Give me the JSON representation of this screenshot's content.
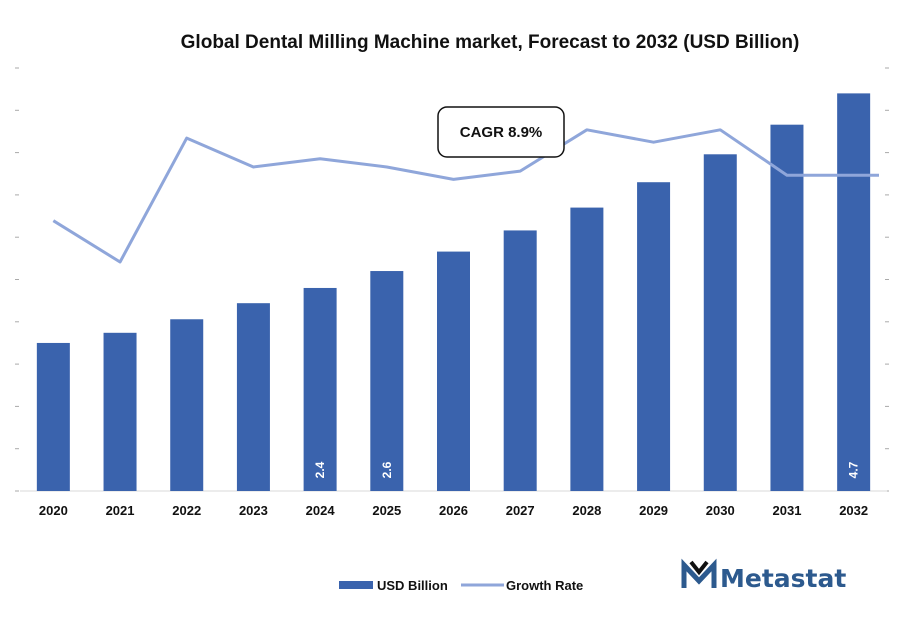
{
  "chart_data": {
    "type": "bar",
    "title": "Global Dental Milling Machine market, Forecast to 2032 (USD Billion)",
    "xlabel": "",
    "ylabel": "",
    "categories": [
      "2020",
      "2021",
      "2022",
      "2023",
      "2024",
      "2025",
      "2026",
      "2027",
      "2028",
      "2029",
      "2030",
      "2031",
      "2032"
    ],
    "ylim": [
      0,
      5.0
    ],
    "series": [
      {
        "name": "USD Billion",
        "kind": "bar",
        "color": "#3a63ad",
        "values": [
          1.75,
          1.87,
          2.03,
          2.22,
          2.4,
          2.6,
          2.83,
          3.08,
          3.35,
          3.65,
          3.98,
          4.33,
          4.7
        ],
        "labels": [
          "",
          "",
          "",
          "",
          "2.4",
          "2.6",
          "",
          "",
          "",
          "",
          "",
          "",
          "4.7"
        ]
      },
      {
        "name": "Growth Rate",
        "kind": "line",
        "color": "#8fa6da",
        "values": [
          8.2,
          7.7,
          9.2,
          8.85,
          8.95,
          8.85,
          8.7,
          8.8,
          9.3,
          9.15,
          9.3,
          8.75,
          8.75
        ]
      }
    ],
    "annotation": "CAGR 8.9%",
    "legend": {
      "position": "bottom"
    },
    "grid": false
  },
  "brand": {
    "name": "Metastat",
    "logo_icon": "metastat-m-logo-icon",
    "color": "#2d5a8e"
  }
}
